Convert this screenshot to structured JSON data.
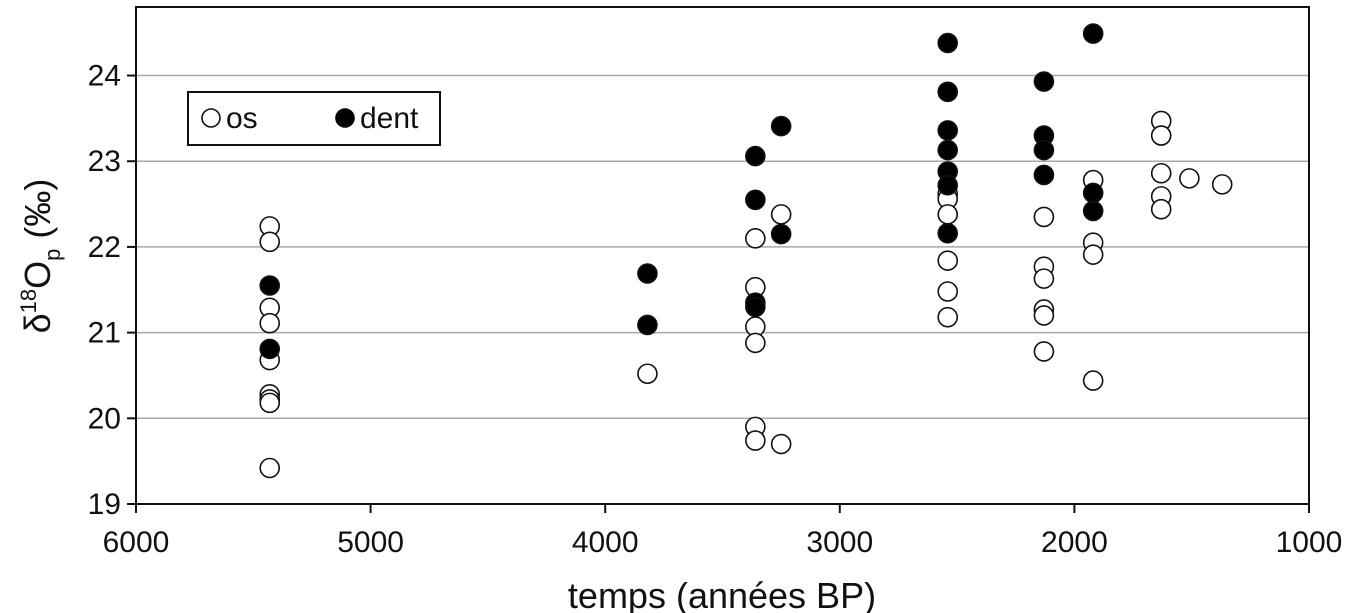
{
  "chart_data": {
    "type": "scatter",
    "xlabel": "temps (années BP)",
    "ylabel_parts": [
      "δ",
      "18",
      "O",
      "p",
      " (‰)"
    ],
    "xlim": [
      6000,
      1000
    ],
    "ylim": [
      19,
      24.8
    ],
    "x_reversed": true,
    "x_ticks": [
      6000,
      5000,
      4000,
      3000,
      2000,
      1000
    ],
    "y_ticks": [
      19,
      20,
      21,
      22,
      23,
      24
    ],
    "grid": "horizontal",
    "legend": "top-left",
    "legend_entries": [
      "os",
      "dent"
    ],
    "series": [
      {
        "name": "os",
        "marker": "open-circle",
        "points": [
          [
            5430,
            22.24
          ],
          [
            5430,
            22.06
          ],
          [
            5430,
            21.29
          ],
          [
            5430,
            21.11
          ],
          [
            5430,
            20.68
          ],
          [
            5430,
            20.28
          ],
          [
            5430,
            20.22
          ],
          [
            5430,
            20.18
          ],
          [
            5430,
            19.42
          ],
          [
            3820,
            20.52
          ],
          [
            3360,
            22.1
          ],
          [
            3360,
            21.53
          ],
          [
            3360,
            21.07
          ],
          [
            3360,
            20.88
          ],
          [
            3360,
            19.9
          ],
          [
            3360,
            19.74
          ],
          [
            3250,
            22.38
          ],
          [
            3250,
            19.7
          ],
          [
            2540,
            22.62
          ],
          [
            2540,
            22.56
          ],
          [
            2540,
            22.38
          ],
          [
            2540,
            21.84
          ],
          [
            2540,
            21.48
          ],
          [
            2540,
            21.18
          ],
          [
            2130,
            22.35
          ],
          [
            2130,
            21.77
          ],
          [
            2130,
            21.63
          ],
          [
            2130,
            21.27
          ],
          [
            2130,
            21.2
          ],
          [
            2130,
            20.78
          ],
          [
            1920,
            22.78
          ],
          [
            1920,
            22.05
          ],
          [
            1920,
            21.91
          ],
          [
            1920,
            20.44
          ],
          [
            1630,
            23.47
          ],
          [
            1630,
            23.3
          ],
          [
            1630,
            22.86
          ],
          [
            1630,
            22.59
          ],
          [
            1630,
            22.44
          ],
          [
            1510,
            22.8
          ],
          [
            1370,
            22.73
          ]
        ]
      },
      {
        "name": "dent",
        "marker": "filled-circle",
        "points": [
          [
            5430,
            21.55
          ],
          [
            5430,
            20.81
          ],
          [
            3820,
            21.69
          ],
          [
            3820,
            21.09
          ],
          [
            3360,
            23.06
          ],
          [
            3360,
            22.55
          ],
          [
            3360,
            21.35
          ],
          [
            3360,
            21.3
          ],
          [
            3250,
            23.41
          ],
          [
            3250,
            22.15
          ],
          [
            2540,
            24.38
          ],
          [
            2540,
            23.81
          ],
          [
            2540,
            23.36
          ],
          [
            2540,
            23.13
          ],
          [
            2540,
            22.88
          ],
          [
            2540,
            22.72
          ],
          [
            2540,
            22.16
          ],
          [
            2130,
            23.93
          ],
          [
            2130,
            23.3
          ],
          [
            2130,
            23.13
          ],
          [
            2130,
            22.84
          ],
          [
            1920,
            24.49
          ],
          [
            1920,
            22.63
          ],
          [
            1920,
            22.42
          ]
        ]
      }
    ]
  }
}
